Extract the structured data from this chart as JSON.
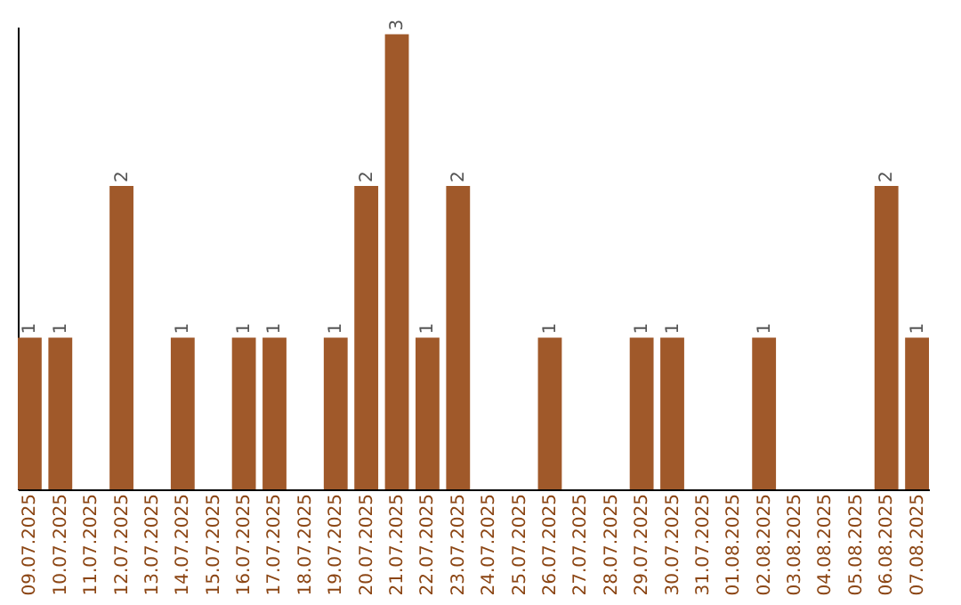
{
  "chart_data": {
    "type": "bar",
    "categories": [
      "09.07.2025",
      "10.07.2025",
      "11.07.2025",
      "12.07.2025",
      "13.07.2025",
      "14.07.2025",
      "15.07.2025",
      "16.07.2025",
      "17.07.2025",
      "18.07.2025",
      "19.07.2025",
      "20.07.2025",
      "21.07.2025",
      "22.07.2025",
      "23.07.2025",
      "24.07.2025",
      "25.07.2025",
      "26.07.2025",
      "27.07.2025",
      "28.07.2025",
      "29.07.2025",
      "30.07.2025",
      "31.07.2025",
      "01.08.2025",
      "02.08.2025",
      "03.08.2025",
      "04.08.2025",
      "05.08.2025",
      "06.08.2025",
      "07.08.2025"
    ],
    "values": [
      1,
      1,
      0,
      2,
      0,
      1,
      0,
      1,
      1,
      0,
      1,
      2,
      3,
      1,
      2,
      0,
      0,
      1,
      0,
      0,
      1,
      1,
      0,
      0,
      1,
      0,
      0,
      0,
      2,
      1
    ],
    "value_labels": [
      "1",
      "1",
      null,
      "2",
      null,
      "1",
      null,
      "1",
      "1",
      null,
      "1",
      "2",
      "3",
      "1",
      "2",
      null,
      null,
      "1",
      null,
      null,
      "1",
      "1",
      null,
      null,
      "1",
      null,
      null,
      null,
      "2",
      "1"
    ],
    "color": "#a0592a",
    "ylim": [
      0,
      3.05
    ],
    "grid": false,
    "tick_labels": "x"
  }
}
